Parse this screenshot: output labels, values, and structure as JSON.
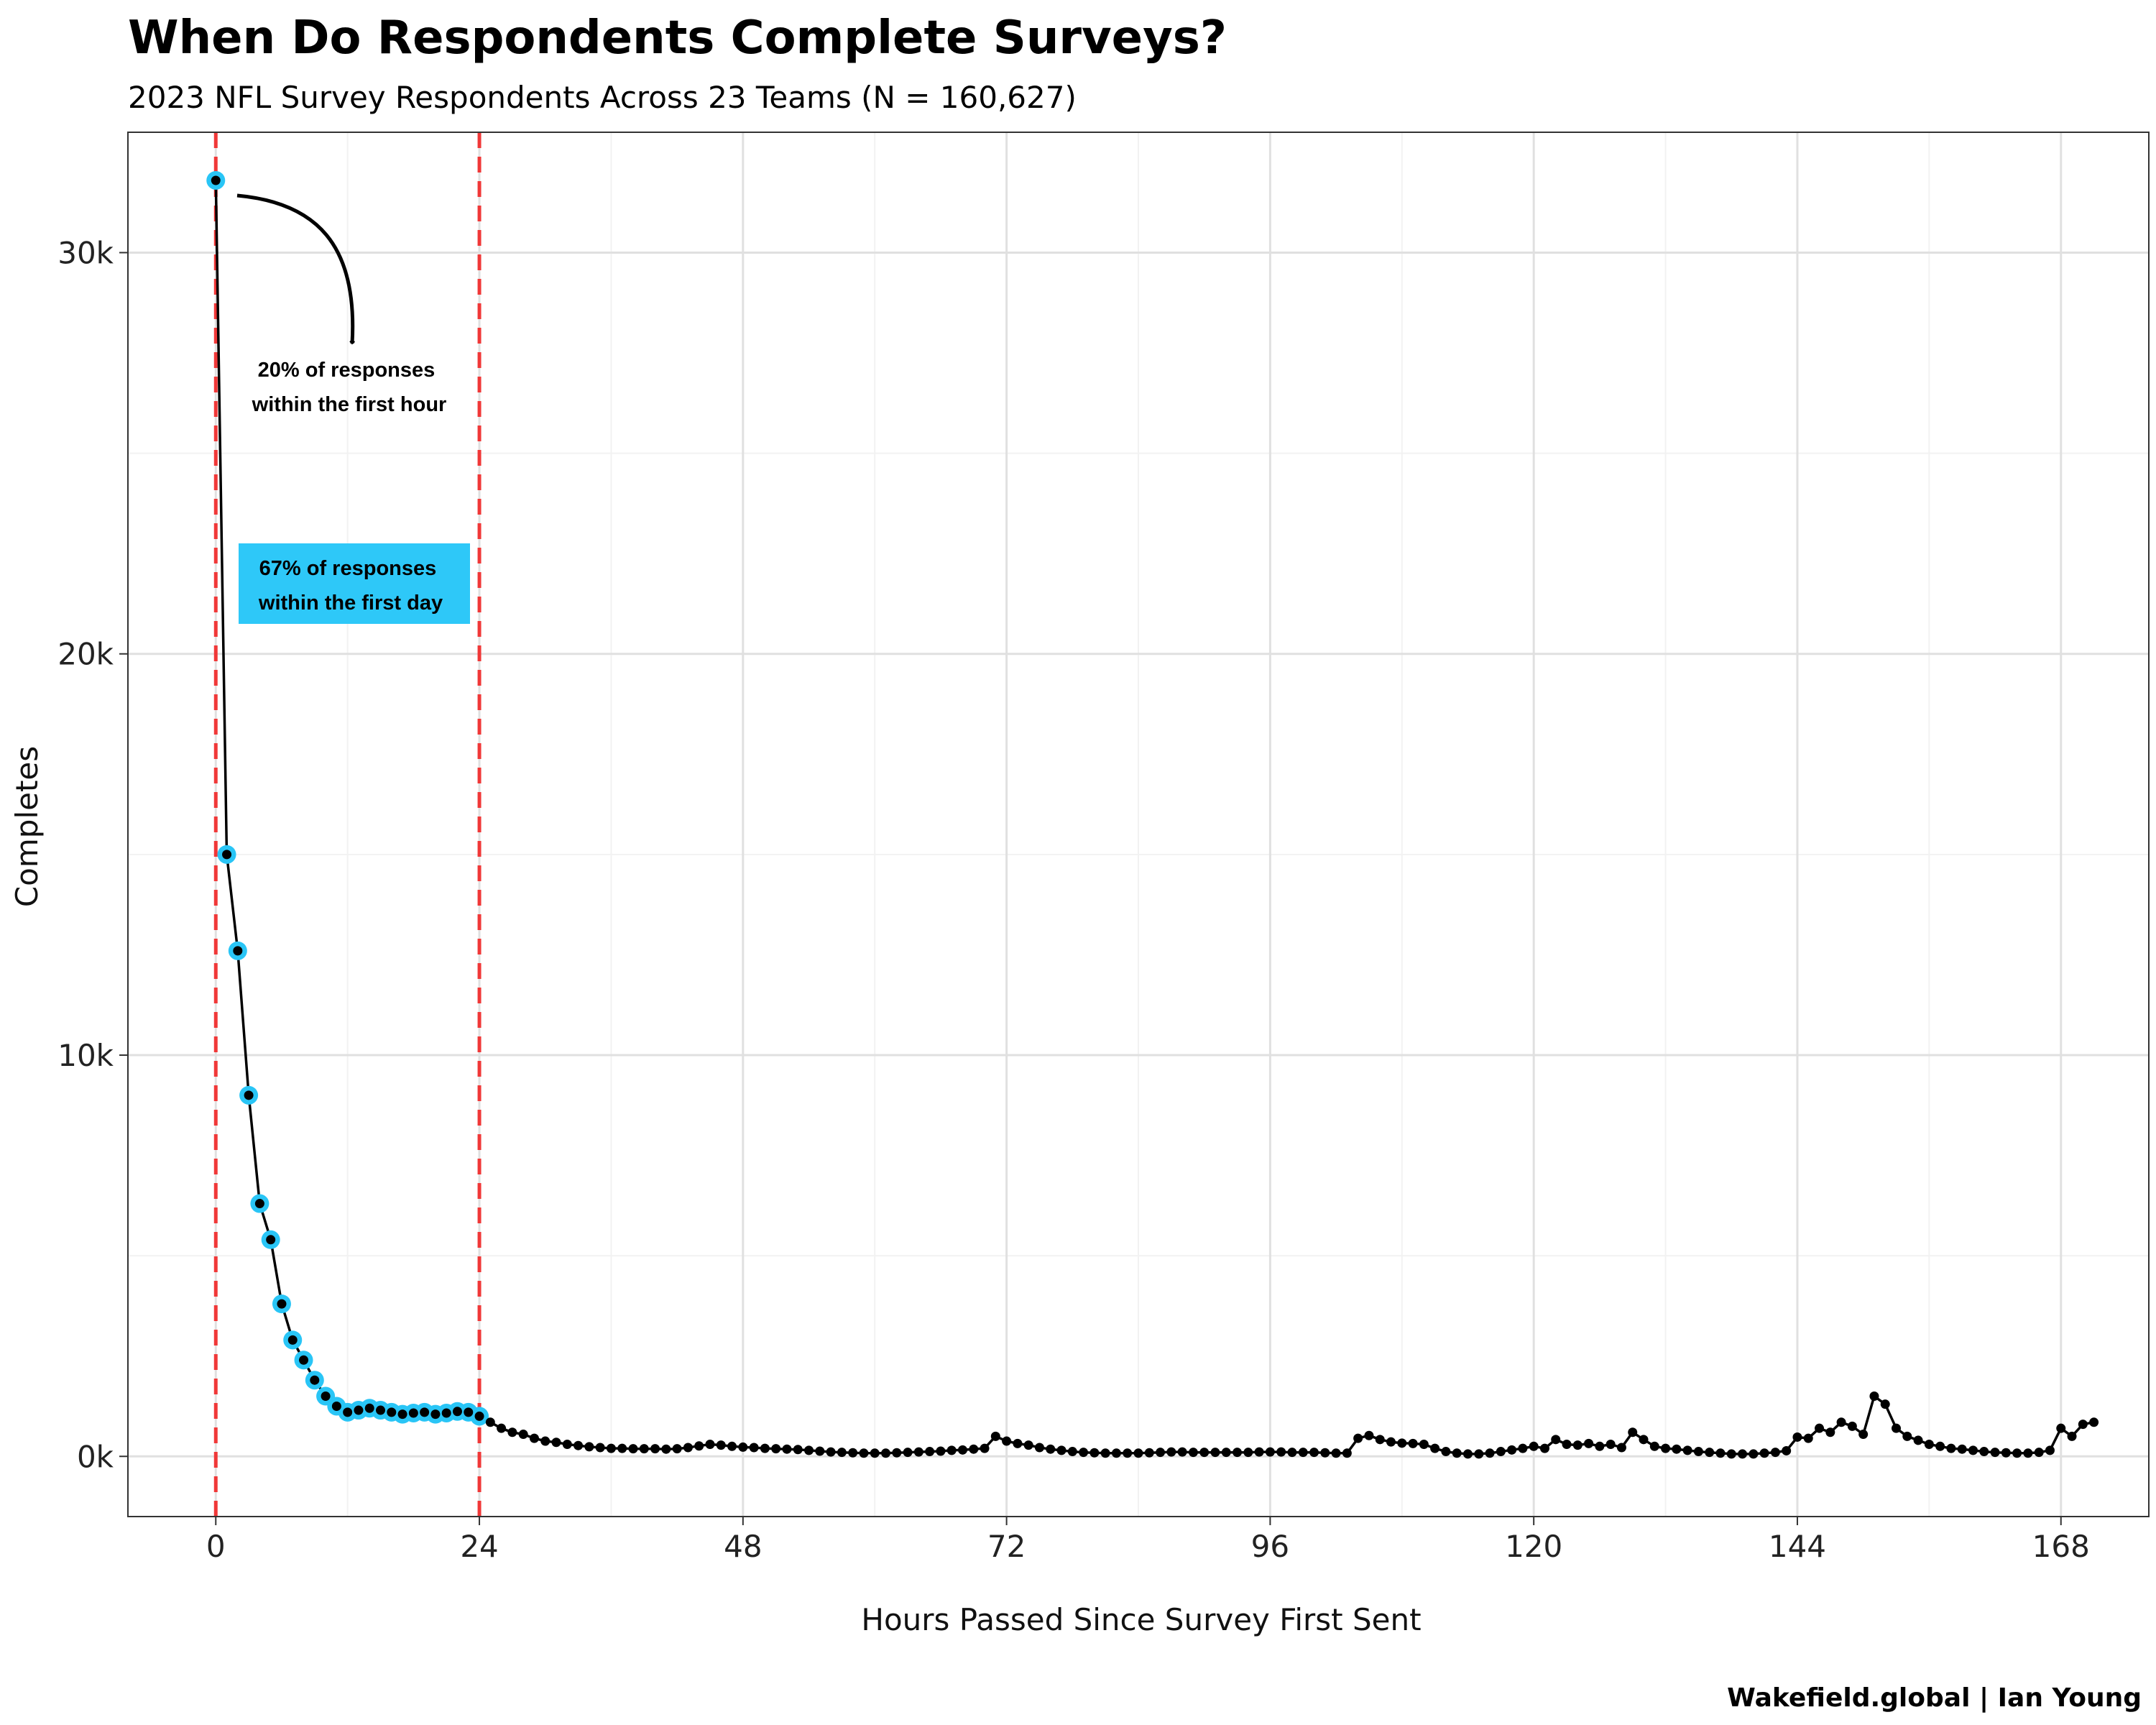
{
  "chart_data": {
    "type": "line",
    "title": "When Do Respondents Complete Surveys?",
    "subtitle": "2023 NFL Survey Respondents Across 23 Teams (N = 160,627)",
    "xlabel": "Hours Passed Since Survey First Sent",
    "ylabel": "Completes",
    "caption": "Wakefield.global | Ian Young",
    "xlim": [
      -8,
      176
    ],
    "ylim": [
      -1500,
      33000
    ],
    "x_ticks": [
      0,
      24,
      48,
      72,
      96,
      120,
      144,
      168
    ],
    "x_tick_labels": [
      "0",
      "24",
      "48",
      "72",
      "96",
      "120",
      "144",
      "168"
    ],
    "y_ticks": [
      0,
      10000,
      20000,
      30000
    ],
    "y_tick_labels": [
      "0k",
      "10k",
      "20k",
      "30k"
    ],
    "grid": true,
    "reference_lines_x": [
      0,
      24
    ],
    "highlight_hours": 24,
    "annotations": [
      {
        "lines": [
          "20% of responses",
          "within the first hour"
        ],
        "x": 12,
        "y": 27500,
        "boxed": false
      },
      {
        "lines": [
          "67% of responses",
          "within the first day"
        ],
        "x": 12,
        "y": 22500,
        "boxed": true
      }
    ],
    "series": [
      {
        "x_start": 0,
        "x_step": 1,
        "values": [
          31800,
          15000,
          12600,
          9000,
          6300,
          5400,
          3800,
          2900,
          2400,
          1900,
          1500,
          1250,
          1100,
          1150,
          1200,
          1150,
          1100,
          1050,
          1080,
          1100,
          1050,
          1080,
          1120,
          1100,
          1000,
          850,
          700,
          600,
          550,
          450,
          380,
          350,
          300,
          270,
          240,
          220,
          200,
          200,
          190,
          190,
          190,
          180,
          190,
          220,
          260,
          300,
          280,
          250,
          230,
          220,
          200,
          190,
          180,
          170,
          150,
          130,
          110,
          100,
          90,
          80,
          80,
          80,
          90,
          100,
          110,
          120,
          130,
          150,
          160,
          180,
          200,
          500,
          380,
          320,
          280,
          220,
          180,
          150,
          120,
          100,
          90,
          80,
          80,
          80,
          80,
          90,
          100,
          110,
          110,
          100,
          100,
          100,
          100,
          100,
          100,
          110,
          110,
          110,
          100,
          100,
          100,
          90,
          80,
          80,
          450,
          520,
          420,
          360,
          330,
          320,
          300,
          200,
          120,
          80,
          60,
          60,
          80,
          120,
          160,
          200,
          250,
          200,
          420,
          300,
          280,
          320,
          250,
          300,
          220,
          600,
          420,
          250,
          200,
          180,
          150,
          120,
          100,
          80,
          60,
          60,
          60,
          80,
          100,
          140,
          480,
          450,
          700,
          600,
          850,
          750,
          550,
          1500,
          1300,
          700,
          500,
          400,
          300,
          250,
          200,
          180,
          150,
          120,
          100,
          90,
          80,
          80,
          100,
          150,
          700,
          500,
          800,
          850
        ]
      }
    ]
  },
  "colors": {
    "line": "#000000",
    "highlight": "#29c5f6",
    "reference_line": "#f03838",
    "grid": "#e0e0e0",
    "panel_border": "#333333",
    "annotation_box": "#2ec8f8"
  }
}
